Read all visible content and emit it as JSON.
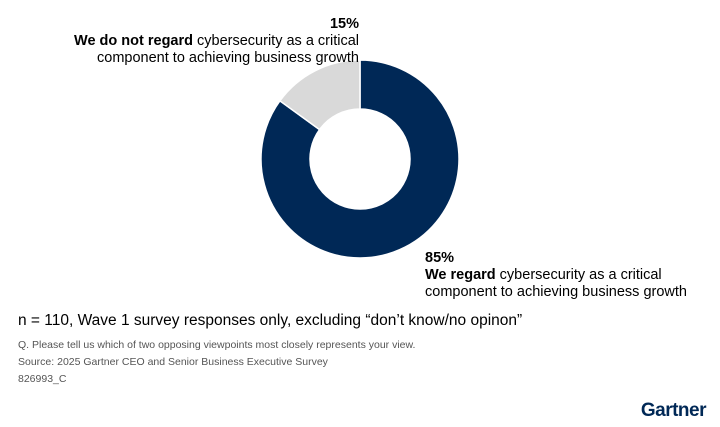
{
  "chart_data": {
    "type": "pie",
    "donut": true,
    "slices": [
      {
        "value": 85,
        "label_pct": "85%",
        "label_bold": "We regard",
        "label_rest": " cybersecurity as a critical",
        "label_line2": "component to achieving business growth",
        "color": "#002856"
      },
      {
        "value": 15,
        "label_pct": "15%",
        "label_bold": "We do not regard",
        "label_rest": " cybersecurity as a critical",
        "label_line2": "component to achieving business growth",
        "color": "#d9d9d9"
      }
    ]
  },
  "footer": {
    "n_note": "n = 110, Wave 1 survey responses only, excluding “don’t know/no opinon”",
    "question": "Q. Please tell us which of two opposing viewpoints most closely represents your view.",
    "source": "Source: 2025 Gartner CEO and Senior Business Executive Survey",
    "id": "826993_C",
    "logo": "Gartner"
  }
}
